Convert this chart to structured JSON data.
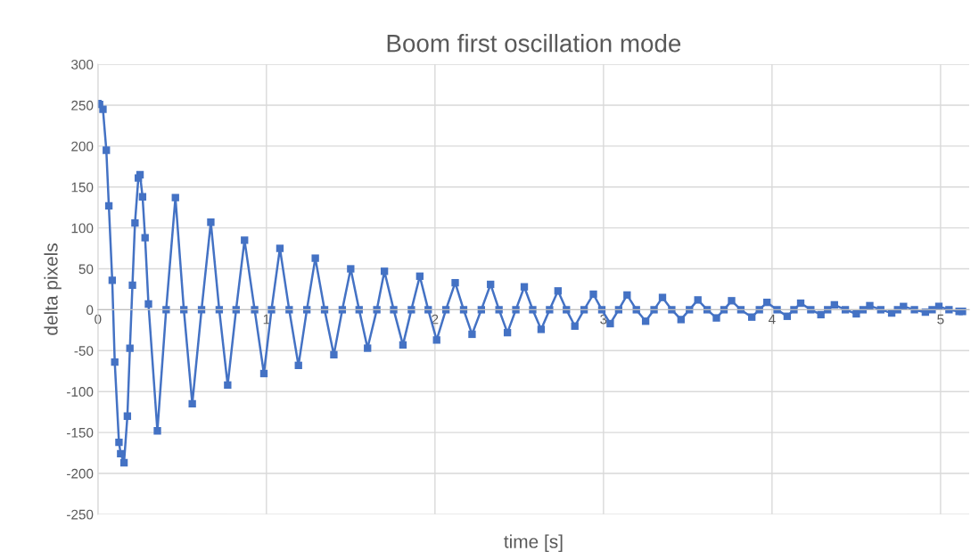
{
  "chart_data": {
    "type": "line",
    "title": "Boom first oscillation mode",
    "xlabel": "time [s]",
    "ylabel": "delta pixels",
    "xlim": [
      0,
      5.17
    ],
    "xticks": [
      0,
      1,
      2,
      3,
      4,
      5
    ],
    "ylim": [
      -250,
      300
    ],
    "yticks": [
      -250,
      -200,
      -150,
      -100,
      -50,
      0,
      50,
      100,
      150,
      200,
      250,
      300
    ],
    "grid": true,
    "marker": "square",
    "line_style": "solid",
    "series": [
      {
        "color": "#4472c4",
        "x": [
          0,
          0.01,
          0.03,
          0.05,
          0.065,
          0.085,
          0.1,
          0.125,
          0.135,
          0.155,
          0.175,
          0.19,
          0.205,
          0.22,
          0.24,
          0.25,
          0.265,
          0.28,
          0.3,
          0.353,
          0.405,
          0.46,
          0.51,
          0.56,
          0.615,
          0.67,
          0.72,
          0.77,
          0.82,
          0.87,
          0.93,
          0.985,
          1.03,
          1.08,
          1.135,
          1.19,
          1.24,
          1.29,
          1.345,
          1.4,
          1.45,
          1.5,
          1.55,
          1.6,
          1.655,
          1.7,
          1.755,
          1.81,
          1.86,
          1.91,
          1.96,
          2.01,
          2.065,
          2.12,
          2.17,
          2.22,
          2.275,
          2.33,
          2.38,
          2.43,
          2.48,
          2.53,
          2.58,
          2.63,
          2.68,
          2.73,
          2.78,
          2.83,
          2.885,
          2.94,
          2.99,
          3.04,
          3.09,
          3.14,
          3.195,
          3.25,
          3.3,
          3.35,
          3.405,
          3.46,
          3.51,
          3.56,
          3.615,
          3.67,
          3.715,
          3.76,
          3.815,
          3.88,
          3.925,
          3.97,
          4.03,
          4.09,
          4.13,
          4.17,
          4.23,
          4.29,
          4.33,
          4.37,
          4.435,
          4.5,
          4.54,
          4.58,
          4.645,
          4.71,
          4.745,
          4.78,
          4.845,
          4.91,
          4.95,
          4.99,
          5.05,
          5.11,
          5.13
        ],
        "values": [
          252,
          251,
          245,
          195,
          127,
          36,
          -64,
          -162,
          -176,
          -187,
          -130,
          -47,
          30,
          106,
          161,
          165,
          138,
          88,
          7,
          -148,
          0,
          137,
          0,
          -115,
          0,
          107,
          0,
          -92,
          0,
          85,
          0,
          -78,
          0,
          75,
          0,
          -68,
          0,
          63,
          0,
          -55,
          0,
          50,
          0,
          -47,
          0,
          47,
          0,
          -43,
          0,
          41,
          0,
          -37,
          0,
          33,
          0,
          -30,
          0,
          31,
          0,
          -28,
          0,
          28,
          0,
          -24,
          0,
          23,
          0,
          -20,
          0,
          19,
          0,
          -17,
          0,
          18,
          0,
          -14,
          0,
          15,
          0,
          -12,
          0,
          12,
          0,
          -10,
          0,
          11,
          0,
          -9,
          0,
          9,
          0,
          -8,
          0,
          8,
          0,
          -6,
          0,
          6,
          0,
          -5,
          0,
          5,
          0,
          -4,
          0,
          4,
          0,
          -3,
          0,
          4,
          0,
          -2,
          -2
        ]
      }
    ]
  }
}
